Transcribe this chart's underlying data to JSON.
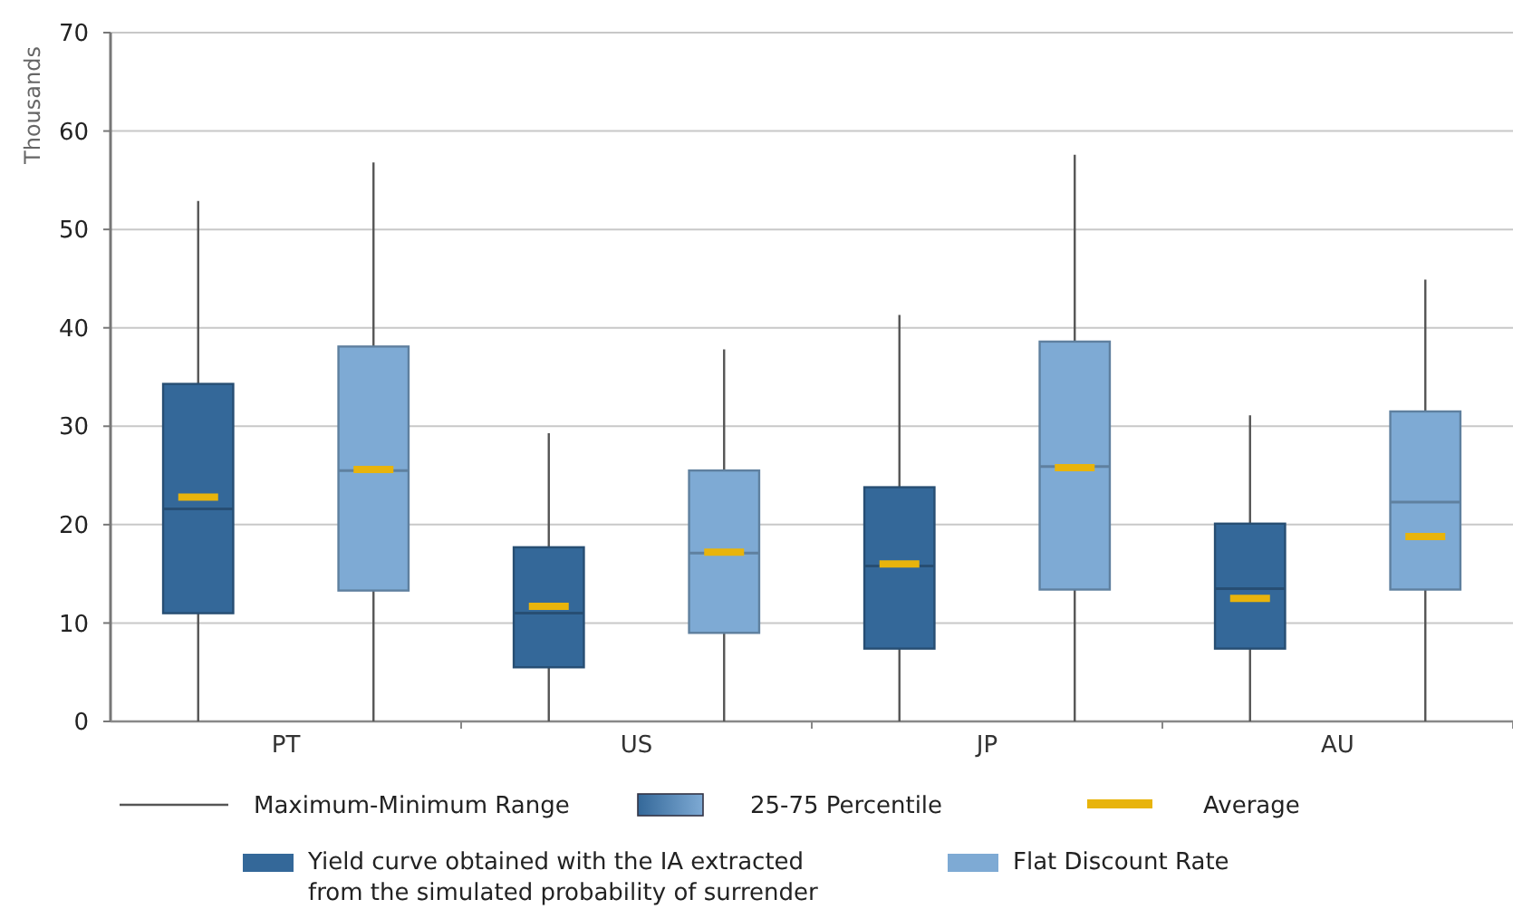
{
  "chart_data": {
    "type": "box",
    "ylabel": "Thousands",
    "categories": [
      "PT",
      "US",
      "JP",
      "AU"
    ],
    "ylim": [
      0,
      70
    ],
    "yticks": [
      0,
      10,
      20,
      30,
      40,
      50,
      60,
      70
    ],
    "grid": "y",
    "legend": "bottom",
    "annotations": [
      "Maximum-Minimum Range",
      "25-75 Percentile",
      "Average"
    ],
    "series": [
      {
        "name": "Yield curve obtained with the IA extracted from the simulated probability of surrender",
        "color": "#346899",
        "boxes": [
          {
            "low": 0,
            "q1": 11,
            "median": 21.6,
            "q3": 34.3,
            "high": 52.9,
            "mean": 22.8
          },
          {
            "low": 0,
            "q1": 5.5,
            "median": 11,
            "q3": 17.7,
            "high": 29.3,
            "mean": 11.7
          },
          {
            "low": 0,
            "q1": 7.4,
            "median": 15.8,
            "q3": 23.8,
            "high": 41.3,
            "mean": 16
          },
          {
            "low": 0,
            "q1": 7.4,
            "median": 13.5,
            "q3": 20.1,
            "high": 31.1,
            "mean": 12.5
          }
        ]
      },
      {
        "name": "Flat Discount Rate",
        "color": "#7eaad4",
        "boxes": [
          {
            "low": 0,
            "q1": 13.3,
            "median": 25.5,
            "q3": 38.1,
            "high": 56.8,
            "mean": 25.6
          },
          {
            "low": 0,
            "q1": 9,
            "median": 17.1,
            "q3": 25.5,
            "high": 37.8,
            "mean": 17.2
          },
          {
            "low": 0,
            "q1": 13.4,
            "median": 25.9,
            "q3": 38.6,
            "high": 57.6,
            "mean": 25.8
          },
          {
            "low": 0,
            "q1": 13.4,
            "median": 22.3,
            "q3": 31.5,
            "high": 44.9,
            "mean": 18.8
          }
        ]
      }
    ]
  }
}
